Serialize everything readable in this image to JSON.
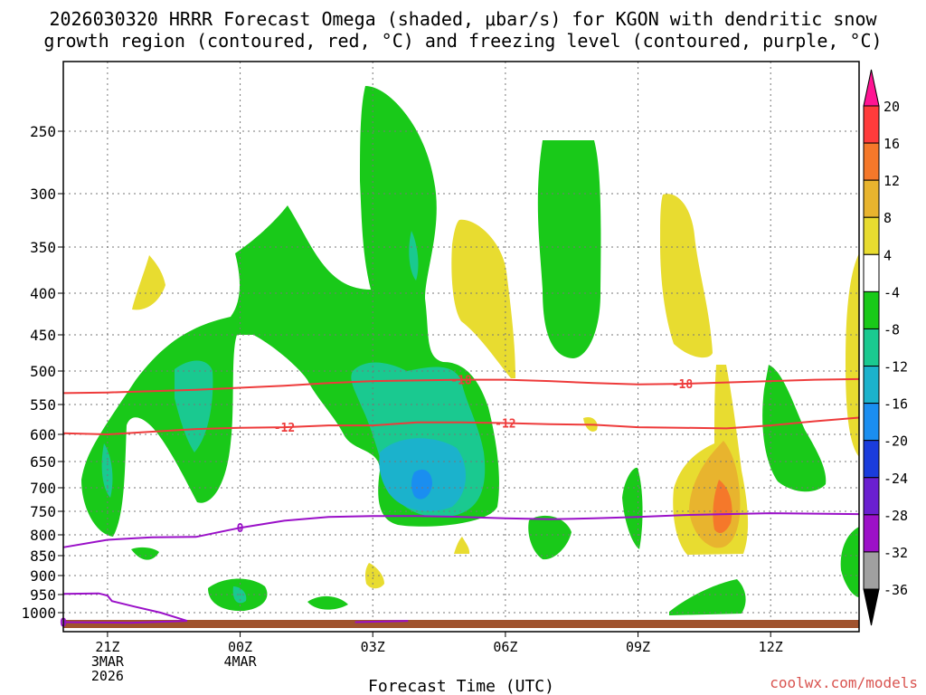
{
  "chart_data": {
    "type": "contour",
    "title_line1": "2026030320 HRRR Forecast Omega (shaded, μbar/s) for KGON with dendritic snow",
    "title_line2": "growth region (contoured, red, °C) and freezing level (contoured, purple, °C)",
    "xlabel": "Forecast Time (UTC)",
    "credit": "coolwx.com/models",
    "x_range_hours": [
      -1,
      17
    ],
    "x_ticks": [
      {
        "hour": 0,
        "lines": [
          "21Z",
          "3MAR",
          "2026"
        ]
      },
      {
        "hour": 3,
        "lines": [
          "00Z",
          "4MAR"
        ]
      },
      {
        "hour": 6,
        "lines": [
          "03Z"
        ]
      },
      {
        "hour": 9,
        "lines": [
          "06Z"
        ]
      },
      {
        "hour": 12,
        "lines": [
          "09Z"
        ]
      },
      {
        "hour": 15,
        "lines": [
          "12Z"
        ]
      }
    ],
    "y_ticks_hpa": [
      250,
      300,
      350,
      400,
      450,
      500,
      550,
      600,
      650,
      700,
      750,
      800,
      850,
      900,
      950,
      1000
    ],
    "y_range_hpa": [
      200,
      1030
    ],
    "colorbar": {
      "ticks": [
        "20",
        "16",
        "12",
        "8",
        "4",
        "-4",
        "-8",
        "-12",
        "-16",
        "-20",
        "-24",
        "-28",
        "-32",
        "-36"
      ],
      "colors": [
        "#ff1493",
        "#ff3b3b",
        "#f5782a",
        "#e8b42e",
        "#e8dc30",
        "#ffffff",
        "#19c919",
        "#1ac990",
        "#1bb2cc",
        "#1a8ef0",
        "#1a3cdc",
        "#6a1fd0",
        "#9c10c8",
        "#a0a0a0",
        "#000000"
      ]
    },
    "dendritic_contours": [
      {
        "label": "-18",
        "points": [
          [
            -1,
            533
          ],
          [
            0,
            532
          ],
          [
            2,
            528
          ],
          [
            4,
            522
          ],
          [
            5,
            518
          ],
          [
            6,
            515
          ],
          [
            7,
            514
          ],
          [
            8,
            513
          ],
          [
            9,
            513
          ],
          [
            10,
            515
          ],
          [
            11,
            518
          ],
          [
            12,
            520
          ],
          [
            13,
            519
          ],
          [
            14,
            517
          ],
          [
            15,
            515
          ],
          [
            16,
            513
          ],
          [
            17,
            512
          ]
        ]
      },
      {
        "label": "-12",
        "points": [
          [
            -1,
            598
          ],
          [
            0,
            600
          ],
          [
            2,
            591
          ],
          [
            3,
            589
          ],
          [
            4,
            588
          ],
          [
            5,
            585
          ],
          [
            6,
            585
          ],
          [
            7,
            580
          ],
          [
            8,
            580
          ],
          [
            9,
            581
          ],
          [
            10,
            583
          ],
          [
            11,
            584
          ],
          [
            12,
            588
          ],
          [
            13,
            589
          ],
          [
            14,
            590
          ],
          [
            15,
            585
          ],
          [
            16,
            578
          ],
          [
            17,
            572
          ]
        ]
      }
    ],
    "freezing_contours": [
      {
        "label": "0",
        "points": [
          [
            -1,
            830
          ],
          [
            0,
            812
          ],
          [
            1,
            806
          ],
          [
            2,
            805
          ],
          [
            3,
            785
          ],
          [
            4,
            770
          ],
          [
            5,
            762
          ],
          [
            6,
            760
          ],
          [
            7,
            760
          ],
          [
            8,
            762
          ],
          [
            9,
            765
          ],
          [
            10,
            767
          ],
          [
            11,
            765
          ],
          [
            12,
            762
          ],
          [
            13,
            758
          ],
          [
            14,
            756
          ],
          [
            15,
            754
          ],
          [
            16,
            755
          ],
          [
            17,
            756
          ]
        ]
      },
      {
        "label": "0",
        "points": [
          [
            -1,
            948
          ],
          [
            -0.2,
            947
          ],
          [
            0,
            953
          ],
          [
            0.1,
            968
          ],
          [
            0.6,
            983
          ],
          [
            1.2,
            1000
          ],
          [
            1.8,
            1013
          ],
          [
            0.5,
            1016
          ],
          [
            -1,
            1015
          ]
        ]
      },
      {
        "label": "0",
        "points": [
          [
            5.6,
            1015
          ],
          [
            6.8,
            1013
          ]
        ]
      }
    ],
    "omega_regions": [
      {
        "value": "-4..-8",
        "color": "#19c919"
      },
      {
        "value": "-8..-12",
        "color": "#1ac990"
      },
      {
        "value": "-12..-16",
        "color": "#1bb2cc"
      },
      {
        "value": "-16..-20",
        "color": "#1a8ef0"
      },
      {
        "value": "4..8",
        "color": "#e8dc30"
      },
      {
        "value": "8..12",
        "color": "#e8b42e"
      },
      {
        "value": "12..16",
        "color": "#f5782a"
      }
    ],
    "ground_color": "#a0522d"
  }
}
